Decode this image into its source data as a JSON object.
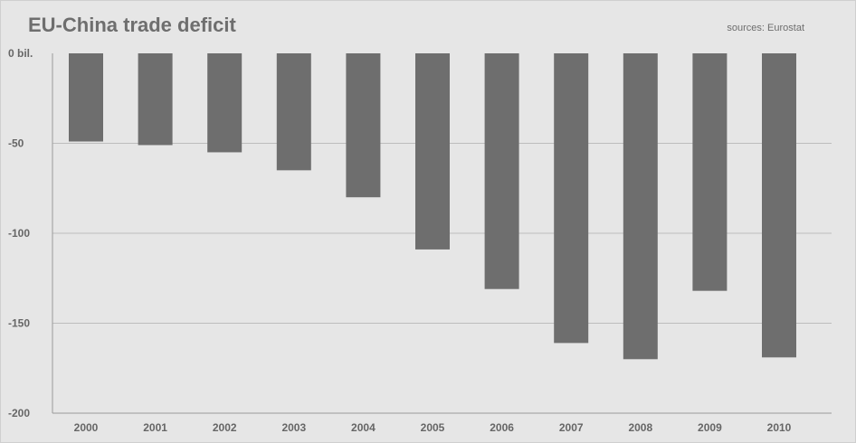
{
  "chart_data": {
    "type": "bar",
    "title": "EU-China trade deficit",
    "source": "sources: Eurostat",
    "xlabel": "",
    "ylabel": "",
    "categories": [
      "2000",
      "2001",
      "2002",
      "2003",
      "2004",
      "2005",
      "2006",
      "2007",
      "2008",
      "2009",
      "2010"
    ],
    "values": [
      -49,
      -51,
      -55,
      -65,
      -80,
      -109,
      -131,
      -161,
      -170,
      -132,
      -169
    ],
    "ylim": [
      -200,
      0
    ],
    "yticks": [
      0,
      -50,
      -100,
      -150,
      -200
    ],
    "ytick_labels": [
      "0 bil.",
      "-50",
      "-100",
      "-150",
      "-200"
    ],
    "grid": true,
    "legend": "none",
    "bar_color": "#6e6e6e",
    "background_color": "#e6e6e6",
    "gridline_color": "#bdbdbd"
  }
}
